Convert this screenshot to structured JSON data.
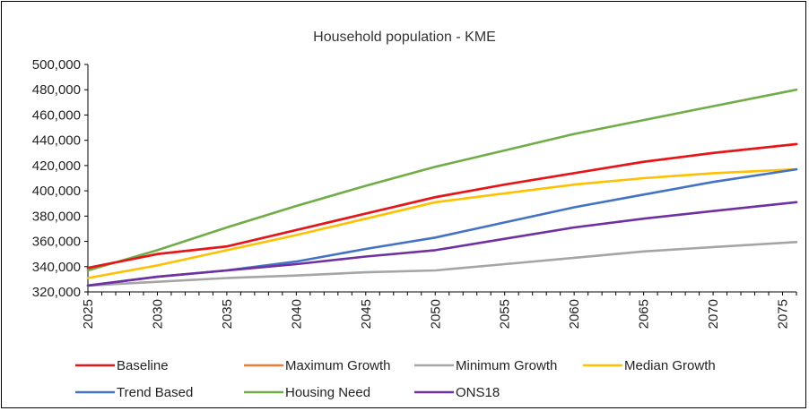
{
  "chart_data": {
    "type": "line",
    "title": "Household population - KME",
    "xlabel": "",
    "ylabel": "",
    "xlim": [
      2025,
      2076
    ],
    "ylim": [
      320000,
      500000
    ],
    "y_ticks": [
      "320,000",
      "340,000",
      "360,000",
      "380,000",
      "400,000",
      "420,000",
      "440,000",
      "460,000",
      "480,000",
      "500,000"
    ],
    "y_tick_values": [
      320000,
      340000,
      360000,
      380000,
      400000,
      420000,
      440000,
      460000,
      480000,
      500000
    ],
    "x_ticks": [
      "2025",
      "2030",
      "2035",
      "2040",
      "2045",
      "2050",
      "2055",
      "2060",
      "2065",
      "2070",
      "2075"
    ],
    "x_tick_values": [
      2025,
      2030,
      2035,
      2040,
      2045,
      2050,
      2055,
      2060,
      2065,
      2070,
      2075
    ],
    "grid": "none",
    "legend_position": "bottom",
    "series": [
      {
        "name": "Baseline",
        "color": "#e8141c",
        "x": [
          2025,
          2030,
          2035,
          2040,
          2045,
          2050,
          2055,
          2060,
          2065,
          2070,
          2076
        ],
        "y": [
          339000,
          350000,
          356000,
          369000,
          382000,
          395000,
          405000,
          414000,
          423000,
          430000,
          437000
        ]
      },
      {
        "name": "Maximum Growth",
        "color": "#ed7d31",
        "x": [
          2025,
          2030,
          2035,
          2040,
          2045,
          2050,
          2055,
          2060,
          2065,
          2070,
          2076
        ],
        "y": [
          339000,
          350000,
          356000,
          369000,
          382000,
          395000,
          405000,
          414000,
          423000,
          430000,
          437000
        ]
      },
      {
        "name": "Minimum Growth",
        "color": "#a5a5a5",
        "x": [
          2025,
          2030,
          2035,
          2040,
          2045,
          2050,
          2055,
          2060,
          2065,
          2070,
          2076
        ],
        "y": [
          325000,
          328000,
          331000,
          333000,
          335500,
          337000,
          342000,
          347000,
          352000,
          355500,
          359500
        ]
      },
      {
        "name": "Median Growth",
        "color": "#ffc000",
        "x": [
          2025,
          2030,
          2035,
          2040,
          2045,
          2050,
          2055,
          2060,
          2065,
          2070,
          2076
        ],
        "y": [
          331000,
          341000,
          353000,
          365000,
          378000,
          391000,
          398000,
          405000,
          410000,
          414000,
          417000
        ]
      },
      {
        "name": "Trend Based",
        "color": "#4472c4",
        "x": [
          2025,
          2030,
          2035,
          2040,
          2045,
          2050,
          2055,
          2060,
          2065,
          2070,
          2076
        ],
        "y": [
          325000,
          332000,
          337000,
          344000,
          354000,
          363000,
          375000,
          387000,
          397000,
          407000,
          417000
        ]
      },
      {
        "name": "Housing Need",
        "color": "#70ad47",
        "x": [
          2025,
          2030,
          2035,
          2040,
          2045,
          2050,
          2055,
          2060,
          2065,
          2070,
          2076
        ],
        "y": [
          337000,
          353000,
          371000,
          388000,
          404000,
          419000,
          432000,
          445000,
          456000,
          467000,
          480000
        ]
      },
      {
        "name": "ONS18",
        "color": "#7030a0",
        "x": [
          2025,
          2030,
          2035,
          2040,
          2045,
          2050,
          2055,
          2060,
          2065,
          2070,
          2076
        ],
        "y": [
          325000,
          332000,
          337000,
          342000,
          348000,
          353000,
          362000,
          371000,
          378000,
          384000,
          391000
        ]
      }
    ]
  }
}
